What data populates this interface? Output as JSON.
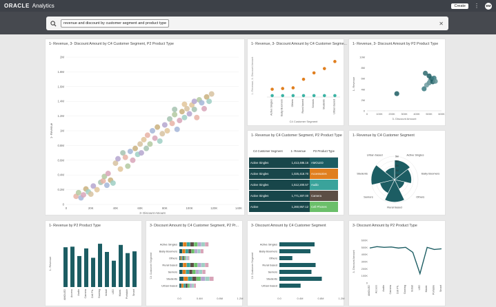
{
  "app": {
    "logo": "ORACLE",
    "name": "Analytics",
    "create_label": "Create",
    "kebab": "⋮",
    "user_initials": "BM"
  },
  "search": {
    "query": "revenue and discount by customer segment and product type",
    "close": "✕"
  },
  "cards": {
    "scatter_main": {
      "title": "1- Revenue, 3- Discount Amount by C4 Customer Segment, P2 Product Type"
    },
    "dot_segment": {
      "title": "1- Revenue, 3- Discount Amount by C4 Customer Segme..."
    },
    "scatter_small": {
      "title": "1- Revenue, 3- Discount Amount by P2 Product Type"
    },
    "table": {
      "title": "1- Revenue by C4 Customer Segment, P2 Product Type"
    },
    "radial": {
      "title": "1- Revenue by C4 Customer Segment"
    },
    "bar_product": {
      "title": "1- Revenue by P2 Product Type"
    },
    "stacked": {
      "title": "3- Discount Amount by C4 Customer Segment, P2 Pr..."
    },
    "hbar_segment": {
      "title": "3- Discount Amount by C4 Customer Segment"
    },
    "line_product": {
      "title": "3- Discount Amount by P2 Product Type"
    }
  },
  "table": {
    "headers": [
      "C4 Customer Segment",
      "1- Revenue",
      "P2 Product Type"
    ],
    "rows": [
      {
        "segment": "Active Singles",
        "revenue": "1,413,486.16",
        "product": "AMOLED",
        "color": "#1c5d63"
      },
      {
        "segment": "Active Singles",
        "revenue": "1,025,418.70",
        "product": "Accessories",
        "color": "#e07f1f"
      },
      {
        "segment": "Active Singles",
        "revenue": "1,512,200.57",
        "product": "Audio",
        "color": "#3aa39b"
      },
      {
        "segment": "Active Singles",
        "revenue": "1,771,307.00",
        "product": "Camera",
        "color": "#5c4e45"
      },
      {
        "segment": "Active",
        "revenue": "1,260,957.12",
        "product": "Cell Phones",
        "color": "#6bbf6a"
      }
    ]
  },
  "chart_data": [
    {
      "type": "scatter",
      "title": "1- Revenue, 3- Discount Amount by C4 Customer Segment, P2 Product Type",
      "xlabel": "3- Discount Amount",
      "ylabel": "1- Revenue",
      "xlim": [
        0,
        140000
      ],
      "ylim": [
        0,
        2000000
      ],
      "xticks": [
        "0",
        "20K",
        "40K",
        "60K",
        "80K",
        "100K",
        "120K",
        "140K"
      ],
      "yticks": [
        "0",
        "0.2M",
        "0.4M",
        "0.6M",
        "0.8M",
        "1M",
        "1.2M",
        "1.4M",
        "1.6M",
        "1.8M",
        "2M"
      ],
      "points": [
        [
          8000,
          110000
        ],
        [
          10000,
          160000
        ],
        [
          12000,
          90000
        ],
        [
          14000,
          130000
        ],
        [
          16000,
          210000
        ],
        [
          18000,
          170000
        ],
        [
          20000,
          140000
        ],
        [
          22000,
          250000
        ],
        [
          25000,
          200000
        ],
        [
          28000,
          300000
        ],
        [
          30000,
          320000
        ],
        [
          31000,
          380000
        ],
        [
          33000,
          260000
        ],
        [
          34000,
          420000
        ],
        [
          36000,
          330000
        ],
        [
          38000,
          290000
        ],
        [
          40000,
          560000
        ],
        [
          42000,
          620000
        ],
        [
          44000,
          480000
        ],
        [
          46000,
          700000
        ],
        [
          48000,
          640000
        ],
        [
          50000,
          520000
        ],
        [
          52000,
          720000
        ],
        [
          54000,
          600000
        ],
        [
          56000,
          760000
        ],
        [
          58000,
          680000
        ],
        [
          60000,
          820000
        ],
        [
          61000,
          700000
        ],
        [
          63000,
          880000
        ],
        [
          65000,
          760000
        ],
        [
          66000,
          940000
        ],
        [
          68000,
          820000
        ],
        [
          70000,
          1000000
        ],
        [
          72000,
          900000
        ],
        [
          74000,
          1050000
        ],
        [
          76000,
          860000
        ],
        [
          78000,
          960000
        ],
        [
          80000,
          1080000
        ],
        [
          82000,
          1000000
        ],
        [
          84000,
          1160000
        ],
        [
          86000,
          1100000
        ],
        [
          88000,
          1220000
        ],
        [
          90000,
          1020000
        ],
        [
          92000,
          1140000
        ],
        [
          94000,
          1260000
        ],
        [
          96000,
          1180000
        ],
        [
          98000,
          1300000
        ],
        [
          100000,
          1230000
        ],
        [
          102000,
          1350000
        ],
        [
          104000,
          1290000
        ],
        [
          106000,
          1180000
        ],
        [
          108000,
          1420000
        ],
        [
          110000,
          1380000
        ],
        [
          112000,
          1300000
        ],
        [
          114000,
          1460000
        ],
        [
          116000,
          1400000
        ],
        [
          118000,
          1500000
        ],
        [
          104000,
          1400000
        ],
        [
          96000,
          1360000
        ],
        [
          88000,
          1290000
        ]
      ],
      "colors": [
        "#e8b3a6",
        "#b3c9a0",
        "#a5b6d8",
        "#d8a4b8",
        "#c9b07e",
        "#9fcfc4",
        "#d7c2a0",
        "#b5a6cf",
        "#e2c69a",
        "#a6c3b0"
      ]
    },
    {
      "type": "scatter",
      "title": "1- Revenue, 3- Discount Amount by C4 Customer Segme...",
      "xlabel": "C4 Customer Segment",
      "ylabel": "1- Revenue, 3- Discount Amount",
      "categories": [
        "Active Singles",
        "Baby Boomers",
        "Others",
        "Rural based",
        "Seniors",
        "Students",
        "Urban based"
      ],
      "series": [
        {
          "name": "1- Revenue",
          "color": "#e07f1f",
          "values": [
            1.1,
            1.2,
            1.3,
            2.5,
            3.4,
            4.0,
            5.0
          ]
        },
        {
          "name": "3- Discount Amount",
          "color": "#3bb3a4",
          "values": [
            0.2,
            0.2,
            0.2,
            0.2,
            0.2,
            0.2,
            0.2
          ]
        }
      ],
      "ylim": [
        0,
        6
      ]
    },
    {
      "type": "scatter",
      "title": "1- Revenue, 3- Discount Amount by P2 Product Type",
      "xlabel": "3- Discount Amount",
      "ylabel": "1- Revenue",
      "xlim": [
        0,
        600000
      ],
      "ylim": [
        0,
        10000000
      ],
      "xticks": [
        "0",
        "100K",
        "200K",
        "300K",
        "400K",
        "500K",
        "600K"
      ],
      "yticks": [
        "0",
        "2M",
        "4M",
        "6M",
        "8M",
        "10M"
      ],
      "points": [
        [
          240000,
          3200000
        ],
        [
          460000,
          4100000
        ],
        [
          500000,
          5200000
        ],
        [
          510000,
          5700000
        ],
        [
          520000,
          6000000
        ],
        [
          530000,
          5400000
        ],
        [
          540000,
          6100000
        ],
        [
          550000,
          5500000
        ],
        [
          480000,
          4800000
        ],
        [
          470000,
          7000000
        ],
        [
          500000,
          6500000
        ]
      ]
    },
    {
      "type": "pie",
      "title": "1- Revenue by C4 Customer Segment",
      "categories": [
        "Active Singles",
        "Baby Boomers",
        "Others",
        "Rural based",
        "Seniors",
        "Students",
        "Urban based"
      ],
      "values": [
        4.2,
        3.6,
        2.2,
        4.8,
        3.2,
        5.0,
        2.6
      ],
      "rings": [
        "1M",
        "2M",
        "3M",
        "4M",
        "5M"
      ],
      "color": "#1c5d63"
    },
    {
      "type": "bar",
      "title": "1- Revenue by P2 Product Type",
      "ylabel": "1- Revenue",
      "categories": [
        "AMOLED",
        "Access",
        "Audio",
        "Camera",
        "Cell Ph.",
        "Gaming",
        "Install",
        "LED",
        "Maint.",
        "Portable",
        "Smart"
      ],
      "values": [
        6.8,
        6.9,
        5.3,
        6.6,
        5.0,
        7.4,
        6.0,
        4.5,
        7.2,
        5.8,
        6.1
      ],
      "ylim": [
        0,
        8
      ],
      "color": "#1c5d63"
    },
    {
      "type": "bar",
      "title": "3- Discount Amount by C4 Customer Segment, P2 Pr...",
      "ylabel": "C4 Customer Segment",
      "categories": [
        "Active Singles",
        "Baby Boomers",
        "Others",
        "Rural based",
        "Seniors",
        "Students",
        "Urban based"
      ],
      "values": [
        580000,
        480000,
        200000,
        580000,
        520000,
        680000,
        330000
      ],
      "xticks": [
        "0.0",
        "0.4M",
        "0.8M",
        "1.2M"
      ],
      "xlim": [
        0,
        1200000
      ],
      "stack_colors": [
        "#1c5d63",
        "#e07f1f",
        "#3aa39b",
        "#5c4e45",
        "#6bbf6a",
        "#b5a6cf",
        "#9fcfc4",
        "#d8a4b8"
      ]
    },
    {
      "type": "bar",
      "title": "3- Discount Amount by C4 Customer Segment",
      "ylabel": "C4 Customer Segment",
      "categories": [
        "Active Singles",
        "Baby Boomers",
        "Others",
        "Rural based",
        "Seniors",
        "Students",
        "Urban based"
      ],
      "values": [
        680000,
        600000,
        250000,
        700000,
        620000,
        820000,
        410000
      ],
      "xticks": [
        "0.0",
        "0.4M",
        "0.8M",
        "1.2M"
      ],
      "xlim": [
        0,
        1200000
      ],
      "color": "#1c5d63"
    },
    {
      "type": "line",
      "title": "3- Discount Amount by P2 Product Type",
      "ylabel": "3- Discount Amount",
      "categories": [
        "AMOLED",
        "Access",
        "Audio",
        "Camera",
        "Cell Ph.",
        "Gaming",
        "Install",
        "LED",
        "Maint.",
        "Portable",
        "Smart"
      ],
      "values": [
        490000,
        510000,
        500000,
        505000,
        490000,
        500000,
        430000,
        130000,
        500000,
        470000,
        480000
      ],
      "ylim": [
        0,
        600000
      ],
      "yticks": [
        "0",
        "100K",
        "200K",
        "300K",
        "400K",
        "500K",
        "600K"
      ],
      "color": "#1c5d63"
    }
  ]
}
